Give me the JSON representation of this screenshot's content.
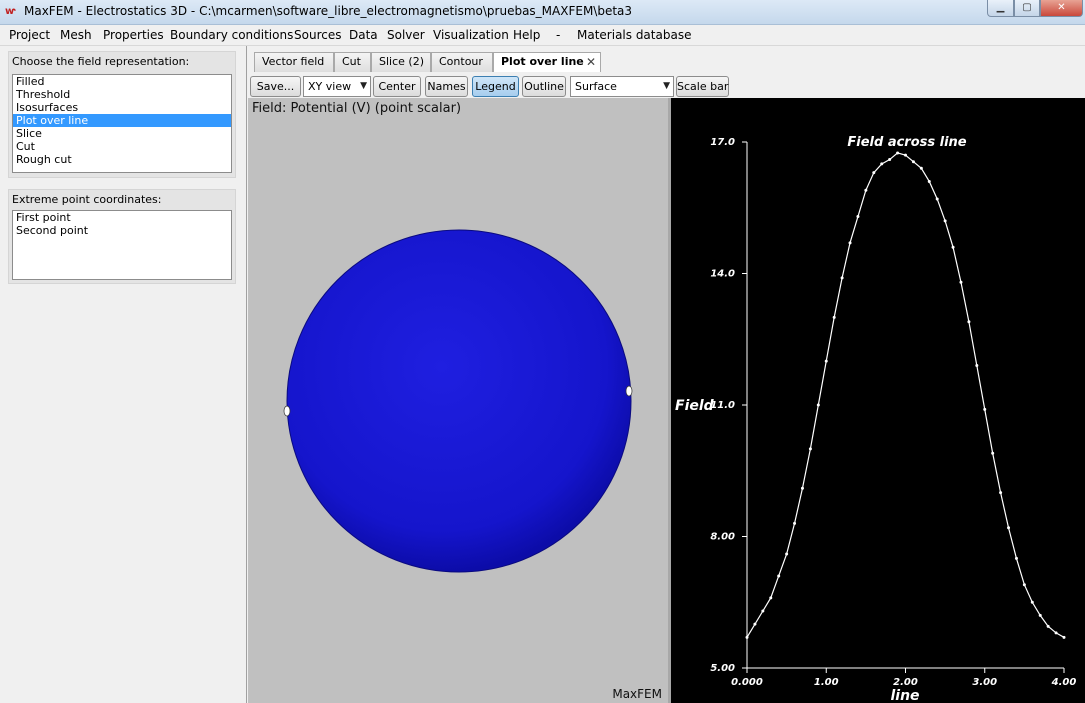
{
  "window": {
    "title": "MaxFEM - Electrostatics 3D - C:\\mcarmen\\software_libre_electromagnetismo\\pruebas_MAXFEM\\beta3",
    "icon": "maxfem-app-icon"
  },
  "menu": [
    "Project",
    "Mesh",
    "Properties",
    "Boundary conditions",
    "Sources",
    "Data",
    "Solver",
    "Visualization",
    "Help",
    "-",
    "Materials database"
  ],
  "left_panel": {
    "representation_title": "Choose the field representation:",
    "representation_options": [
      "Filled",
      "Threshold",
      "Isosurfaces",
      "Plot over line",
      "Slice",
      "Cut",
      "Rough cut"
    ],
    "representation_selected": "Plot over line",
    "extreme_title": "Extreme point coordinates:",
    "extreme_points": [
      "First point",
      "Second point"
    ]
  },
  "tabs": [
    {
      "label": "Vector field",
      "active": false
    },
    {
      "label": "Cut",
      "active": false
    },
    {
      "label": "Slice (2)",
      "active": false
    },
    {
      "label": "Contour",
      "active": false
    },
    {
      "label": "Plot over line",
      "active": true,
      "closable": true
    }
  ],
  "toolbar": {
    "save": "Save...",
    "view_combo": "XY view",
    "center": "Center",
    "names": "Names",
    "legend": "Legend",
    "outline": "Outline",
    "surface_combo": "Surface",
    "scale_bar": "Scale bar"
  },
  "viewport": {
    "field_label": "Field: Potential (V) (point scalar)",
    "watermark": "MaxFEM",
    "sphere_color": "#1a1ad6",
    "background": "#c0c0c0"
  },
  "chart_data": {
    "type": "line",
    "title": "Field across line",
    "xlabel": "line",
    "ylabel": "Field",
    "xlim": [
      0,
      4
    ],
    "ylim": [
      5,
      17
    ],
    "xticks": [
      "0.000",
      "1.00",
      "2.00",
      "3.00",
      "4.00"
    ],
    "yticks": [
      "5.00",
      "8.00",
      "11.0",
      "14.0",
      "17.0"
    ],
    "grid": false,
    "series": [
      {
        "color": "#ffffff",
        "x": [
          0.0,
          0.1,
          0.2,
          0.3,
          0.4,
          0.5,
          0.6,
          0.7,
          0.8,
          0.9,
          1.0,
          1.1,
          1.2,
          1.3,
          1.4,
          1.5,
          1.6,
          1.7,
          1.8,
          1.9,
          2.0,
          2.1,
          2.2,
          2.3,
          2.4,
          2.5,
          2.6,
          2.7,
          2.8,
          2.9,
          3.0,
          3.1,
          3.2,
          3.3,
          3.4,
          3.5,
          3.6,
          3.7,
          3.8,
          3.9,
          4.0
        ],
        "y": [
          5.7,
          6.0,
          6.3,
          6.6,
          7.1,
          7.6,
          8.3,
          9.1,
          10.0,
          11.0,
          12.0,
          13.0,
          13.9,
          14.7,
          15.3,
          15.9,
          16.3,
          16.5,
          16.6,
          16.75,
          16.7,
          16.55,
          16.4,
          16.1,
          15.7,
          15.2,
          14.6,
          13.8,
          12.9,
          11.9,
          10.9,
          9.9,
          9.0,
          8.2,
          7.5,
          6.9,
          6.5,
          6.2,
          5.95,
          5.8,
          5.7
        ]
      }
    ]
  }
}
